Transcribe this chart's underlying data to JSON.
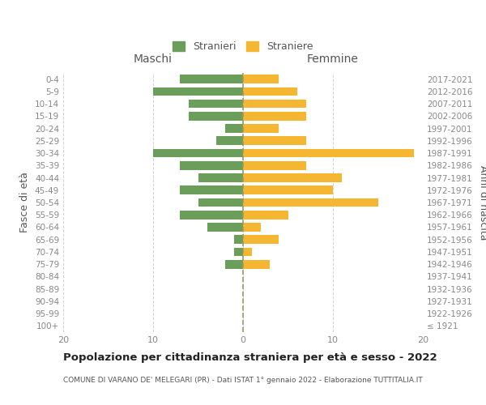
{
  "age_groups": [
    "100+",
    "95-99",
    "90-94",
    "85-89",
    "80-84",
    "75-79",
    "70-74",
    "65-69",
    "60-64",
    "55-59",
    "50-54",
    "45-49",
    "40-44",
    "35-39",
    "30-34",
    "25-29",
    "20-24",
    "15-19",
    "10-14",
    "5-9",
    "0-4"
  ],
  "birth_years": [
    "≤ 1921",
    "1922-1926",
    "1927-1931",
    "1932-1936",
    "1937-1941",
    "1942-1946",
    "1947-1951",
    "1952-1956",
    "1957-1961",
    "1962-1966",
    "1967-1971",
    "1972-1976",
    "1977-1981",
    "1982-1986",
    "1987-1991",
    "1992-1996",
    "1997-2001",
    "2002-2006",
    "2007-2011",
    "2012-2016",
    "2017-2021"
  ],
  "maschi": [
    0,
    0,
    0,
    0,
    0,
    2,
    1,
    1,
    4,
    7,
    5,
    7,
    5,
    7,
    10,
    3,
    2,
    6,
    6,
    10,
    7
  ],
  "femmine": [
    0,
    0,
    0,
    0,
    0,
    3,
    1,
    4,
    2,
    5,
    15,
    10,
    11,
    7,
    19,
    7,
    4,
    7,
    7,
    6,
    4
  ],
  "color_maschi": "#6a9e5a",
  "color_femmine": "#f5b731",
  "background_color": "#ffffff",
  "grid_color": "#cccccc",
  "title": "Popolazione per cittadinanza straniera per età e sesso - 2022",
  "subtitle": "COMUNE DI VARANO DE' MELEGARI (PR) - Dati ISTAT 1° gennaio 2022 - Elaborazione TUTTITALIA.IT",
  "ylabel_left": "Fasce di età",
  "ylabel_right": "Anni di nascita",
  "xlabel_left": "Maschi",
  "xlabel_right": "Femmine",
  "legend_stranieri": "Stranieri",
  "legend_straniere": "Straniere",
  "xlim": 20
}
